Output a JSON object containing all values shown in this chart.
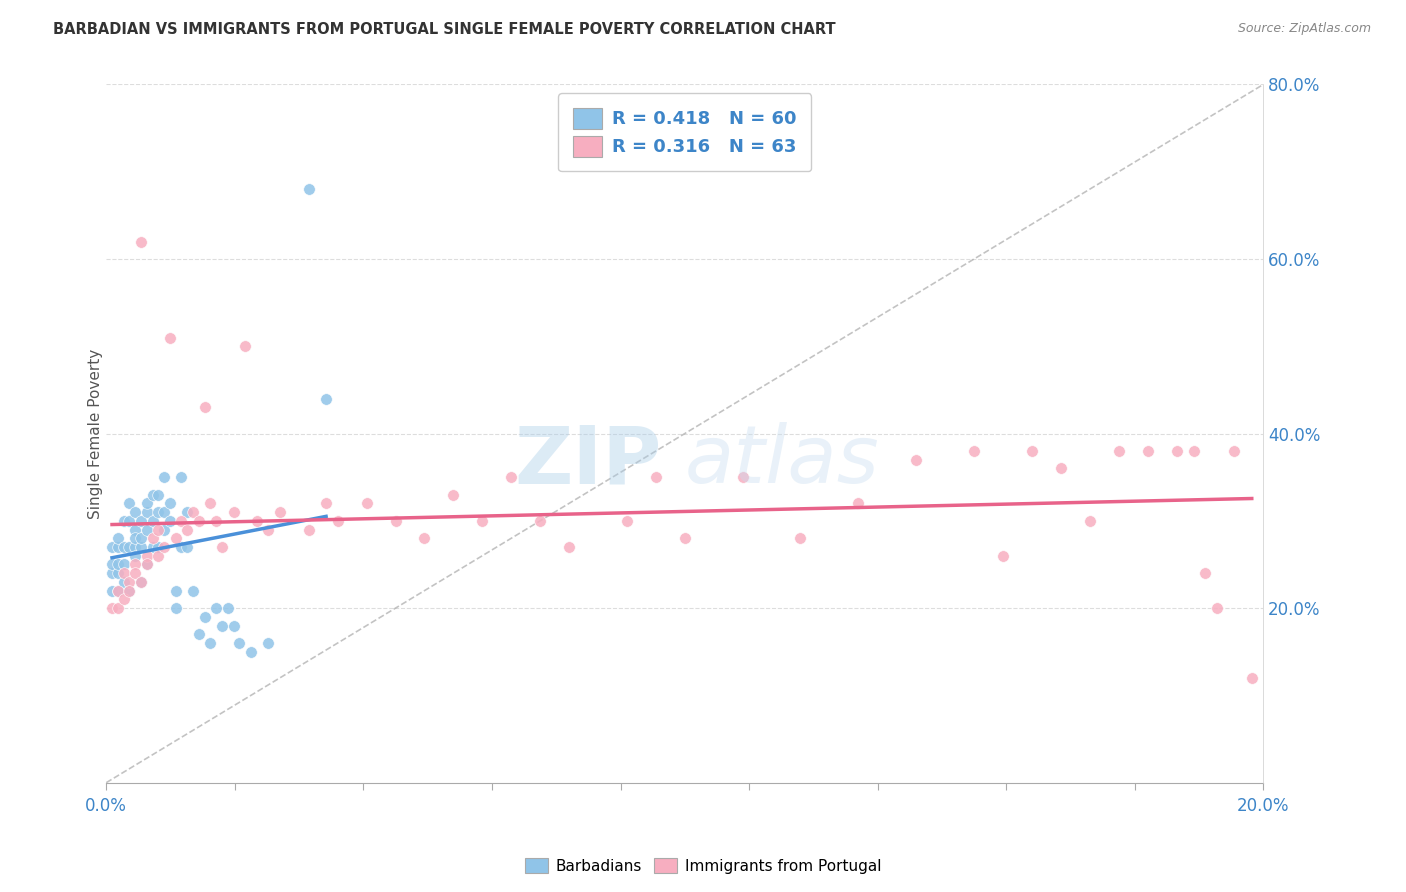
{
  "title": "BARBADIAN VS IMMIGRANTS FROM PORTUGAL SINGLE FEMALE POVERTY CORRELATION CHART",
  "source": "Source: ZipAtlas.com",
  "ylabel": "Single Female Poverty",
  "xlim": [
    0.0,
    0.2
  ],
  "ylim": [
    0.0,
    0.8
  ],
  "x_ticks_labels": [
    "0.0%",
    "",
    "",
    "",
    "",
    "",
    "",
    "",
    "",
    "20.0%"
  ],
  "y_ticks_right_vals": [
    0.2,
    0.4,
    0.6,
    0.8
  ],
  "y_ticks_right_labels": [
    "20.0%",
    "40.0%",
    "60.0%",
    "80.0%"
  ],
  "blue_scatter_color": "#90c4e8",
  "pink_scatter_color": "#f7aec0",
  "blue_line_color": "#4a90d9",
  "pink_line_color": "#e8638a",
  "tick_label_color": "#3d85c8",
  "watermark_color": "#cde4f5",
  "legend_box_color": "#ffffff",
  "legend_edge_color": "#cccccc",
  "grid_color": "#dddddd",
  "border_color": "#cccccc",
  "barbadians_x": [
    0.001,
    0.001,
    0.001,
    0.001,
    0.002,
    0.002,
    0.002,
    0.002,
    0.002,
    0.003,
    0.003,
    0.003,
    0.003,
    0.004,
    0.004,
    0.004,
    0.004,
    0.005,
    0.005,
    0.005,
    0.005,
    0.005,
    0.006,
    0.006,
    0.006,
    0.006,
    0.007,
    0.007,
    0.007,
    0.007,
    0.008,
    0.008,
    0.008,
    0.009,
    0.009,
    0.009,
    0.01,
    0.01,
    0.01,
    0.011,
    0.011,
    0.012,
    0.012,
    0.013,
    0.013,
    0.014,
    0.014,
    0.015,
    0.016,
    0.017,
    0.018,
    0.019,
    0.02,
    0.021,
    0.022,
    0.023,
    0.025,
    0.028,
    0.035,
    0.038
  ],
  "barbadians_y": [
    0.24,
    0.25,
    0.27,
    0.22,
    0.24,
    0.25,
    0.27,
    0.22,
    0.28,
    0.25,
    0.27,
    0.3,
    0.23,
    0.27,
    0.3,
    0.32,
    0.22,
    0.27,
    0.29,
    0.31,
    0.26,
    0.28,
    0.27,
    0.28,
    0.3,
    0.23,
    0.29,
    0.31,
    0.32,
    0.25,
    0.3,
    0.33,
    0.27,
    0.31,
    0.33,
    0.27,
    0.31,
    0.29,
    0.35,
    0.32,
    0.3,
    0.2,
    0.22,
    0.27,
    0.35,
    0.27,
    0.31,
    0.22,
    0.17,
    0.19,
    0.16,
    0.2,
    0.18,
    0.2,
    0.18,
    0.16,
    0.15,
    0.16,
    0.68,
    0.44
  ],
  "portugal_x": [
    0.001,
    0.002,
    0.002,
    0.003,
    0.003,
    0.004,
    0.004,
    0.005,
    0.005,
    0.006,
    0.006,
    0.007,
    0.007,
    0.008,
    0.009,
    0.009,
    0.01,
    0.011,
    0.012,
    0.013,
    0.014,
    0.015,
    0.016,
    0.017,
    0.018,
    0.019,
    0.02,
    0.022,
    0.024,
    0.026,
    0.028,
    0.03,
    0.035,
    0.038,
    0.04,
    0.045,
    0.05,
    0.055,
    0.06,
    0.065,
    0.07,
    0.075,
    0.08,
    0.09,
    0.095,
    0.1,
    0.11,
    0.12,
    0.13,
    0.14,
    0.15,
    0.155,
    0.16,
    0.165,
    0.17,
    0.175,
    0.18,
    0.185,
    0.188,
    0.19,
    0.192,
    0.195,
    0.198
  ],
  "portugal_y": [
    0.2,
    0.22,
    0.2,
    0.24,
    0.21,
    0.23,
    0.22,
    0.25,
    0.24,
    0.23,
    0.62,
    0.26,
    0.25,
    0.28,
    0.29,
    0.26,
    0.27,
    0.51,
    0.28,
    0.3,
    0.29,
    0.31,
    0.3,
    0.43,
    0.32,
    0.3,
    0.27,
    0.31,
    0.5,
    0.3,
    0.29,
    0.31,
    0.29,
    0.32,
    0.3,
    0.32,
    0.3,
    0.28,
    0.33,
    0.3,
    0.35,
    0.3,
    0.27,
    0.3,
    0.35,
    0.28,
    0.35,
    0.28,
    0.32,
    0.37,
    0.38,
    0.26,
    0.38,
    0.36,
    0.3,
    0.38,
    0.38,
    0.38,
    0.38,
    0.24,
    0.2,
    0.38,
    0.12
  ],
  "blue_trend_x": [
    0.001,
    0.038
  ],
  "pink_trend_x": [
    0.001,
    0.198
  ]
}
